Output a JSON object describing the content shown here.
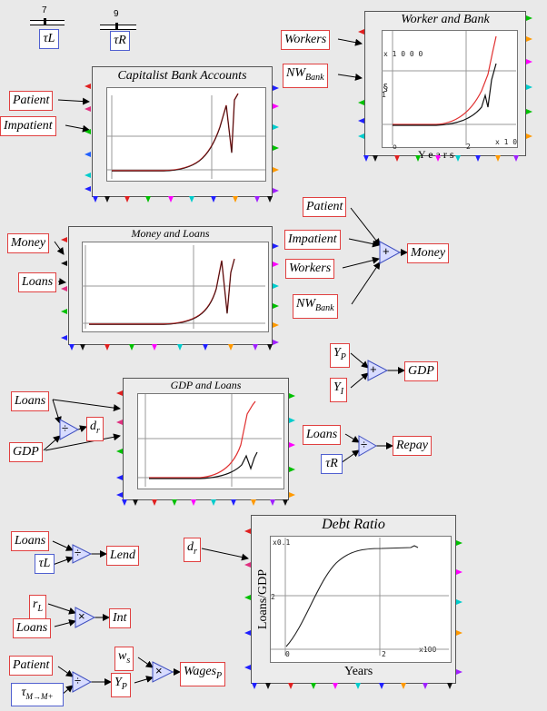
{
  "sliders": {
    "tau_l": {
      "value": "7",
      "label": "τL"
    },
    "tau_r": {
      "value": "9",
      "label": "τR"
    }
  },
  "plots": {
    "capitalist": {
      "title": "Capitalist Bank Accounts"
    },
    "worker_bank": {
      "title": "Worker and Bank",
      "tick_a": "x  1 0 0 0",
      "tick_b": "§",
      "tick_c": "1",
      "tick_d": "o",
      "tick_e": "2",
      "tick_f": "x 1 0",
      "xlabel": "Y e a r s"
    },
    "money_loans": {
      "title": "Money and Loans"
    },
    "gdp_loans": {
      "title": "GDP and Loans"
    },
    "debt_ratio": {
      "title": "Debt Ratio",
      "ylabel": "Loans/GDP",
      "xlabel": "Years",
      "y_mult": "x0.1",
      "y_tick": "2",
      "x_zero": "0",
      "x_two": "2",
      "x_mult": "x100"
    }
  },
  "vars": {
    "patient_1": "Patient",
    "impatient_1": "Impatient",
    "workers_1": "Workers",
    "nwbank_1": "NW",
    "nwbank_1_sub": "Bank",
    "money_1": "Money",
    "loans_1": "Loans",
    "patient_2": "Patient",
    "impatient_2": "Impatient",
    "workers_2": "Workers",
    "nwbank_2": "NW",
    "nwbank_2_sub": "Bank",
    "money_out": "Money",
    "yp_1": "Y",
    "yp_1_sub": "P",
    "yi_1": "Y",
    "yi_1_sub": "I",
    "gdp_out": "GDP",
    "loans_2": "Loans",
    "gdp_1": "GDP",
    "dr_1": "d",
    "dr_1_sub": "r",
    "loans_3": "Loans",
    "repay_out": "Repay",
    "dr_2": "d",
    "dr_2_sub": "r",
    "loans_4": "Loans",
    "lend_out": "Lend",
    "rl_1": "r",
    "rl_1_sub": "L",
    "loans_5": "Loans",
    "int_out": "Int",
    "patient_3": "Patient",
    "ws_1": "w",
    "ws_1_sub": "s",
    "yp_2": "Y",
    "yp_2_sub": "P",
    "wagesp_out": "Wages",
    "wagesp_out_sub": "P"
  },
  "params": {
    "tau_l_2": "τL",
    "tau_r_2": "τR",
    "tau_mm": "τ",
    "tau_mm_sub": "M→M+"
  },
  "operators": {
    "plus": "+",
    "divide": "÷",
    "multiply": "×"
  },
  "chart_data": [
    {
      "type": "line",
      "title": "Capitalist Bank Accounts",
      "series": [
        {
          "values": "exponential rise then sharp dip and recovery"
        }
      ]
    },
    {
      "type": "line",
      "title": "Worker and Bank",
      "series": [
        {
          "values": "red rising curve"
        },
        {
          "values": "black curve with dip"
        }
      ]
    },
    {
      "type": "line",
      "title": "Money and Loans",
      "series": [
        {
          "values": "rise then dip"
        }
      ]
    },
    {
      "type": "line",
      "title": "GDP and Loans",
      "series": [
        {
          "values": "red rise"
        },
        {
          "values": "black rise with dip"
        }
      ]
    },
    {
      "type": "line",
      "title": "Debt Ratio",
      "xlabel": "Years",
      "ylabel": "Loans/GDP",
      "series": [
        {
          "values": "sigmoid rising to plateau"
        }
      ]
    }
  ],
  "colors": {
    "var_border": "#e04040",
    "param_border": "#5060d0",
    "red_series": "#e03030",
    "black_series": "#111111"
  }
}
